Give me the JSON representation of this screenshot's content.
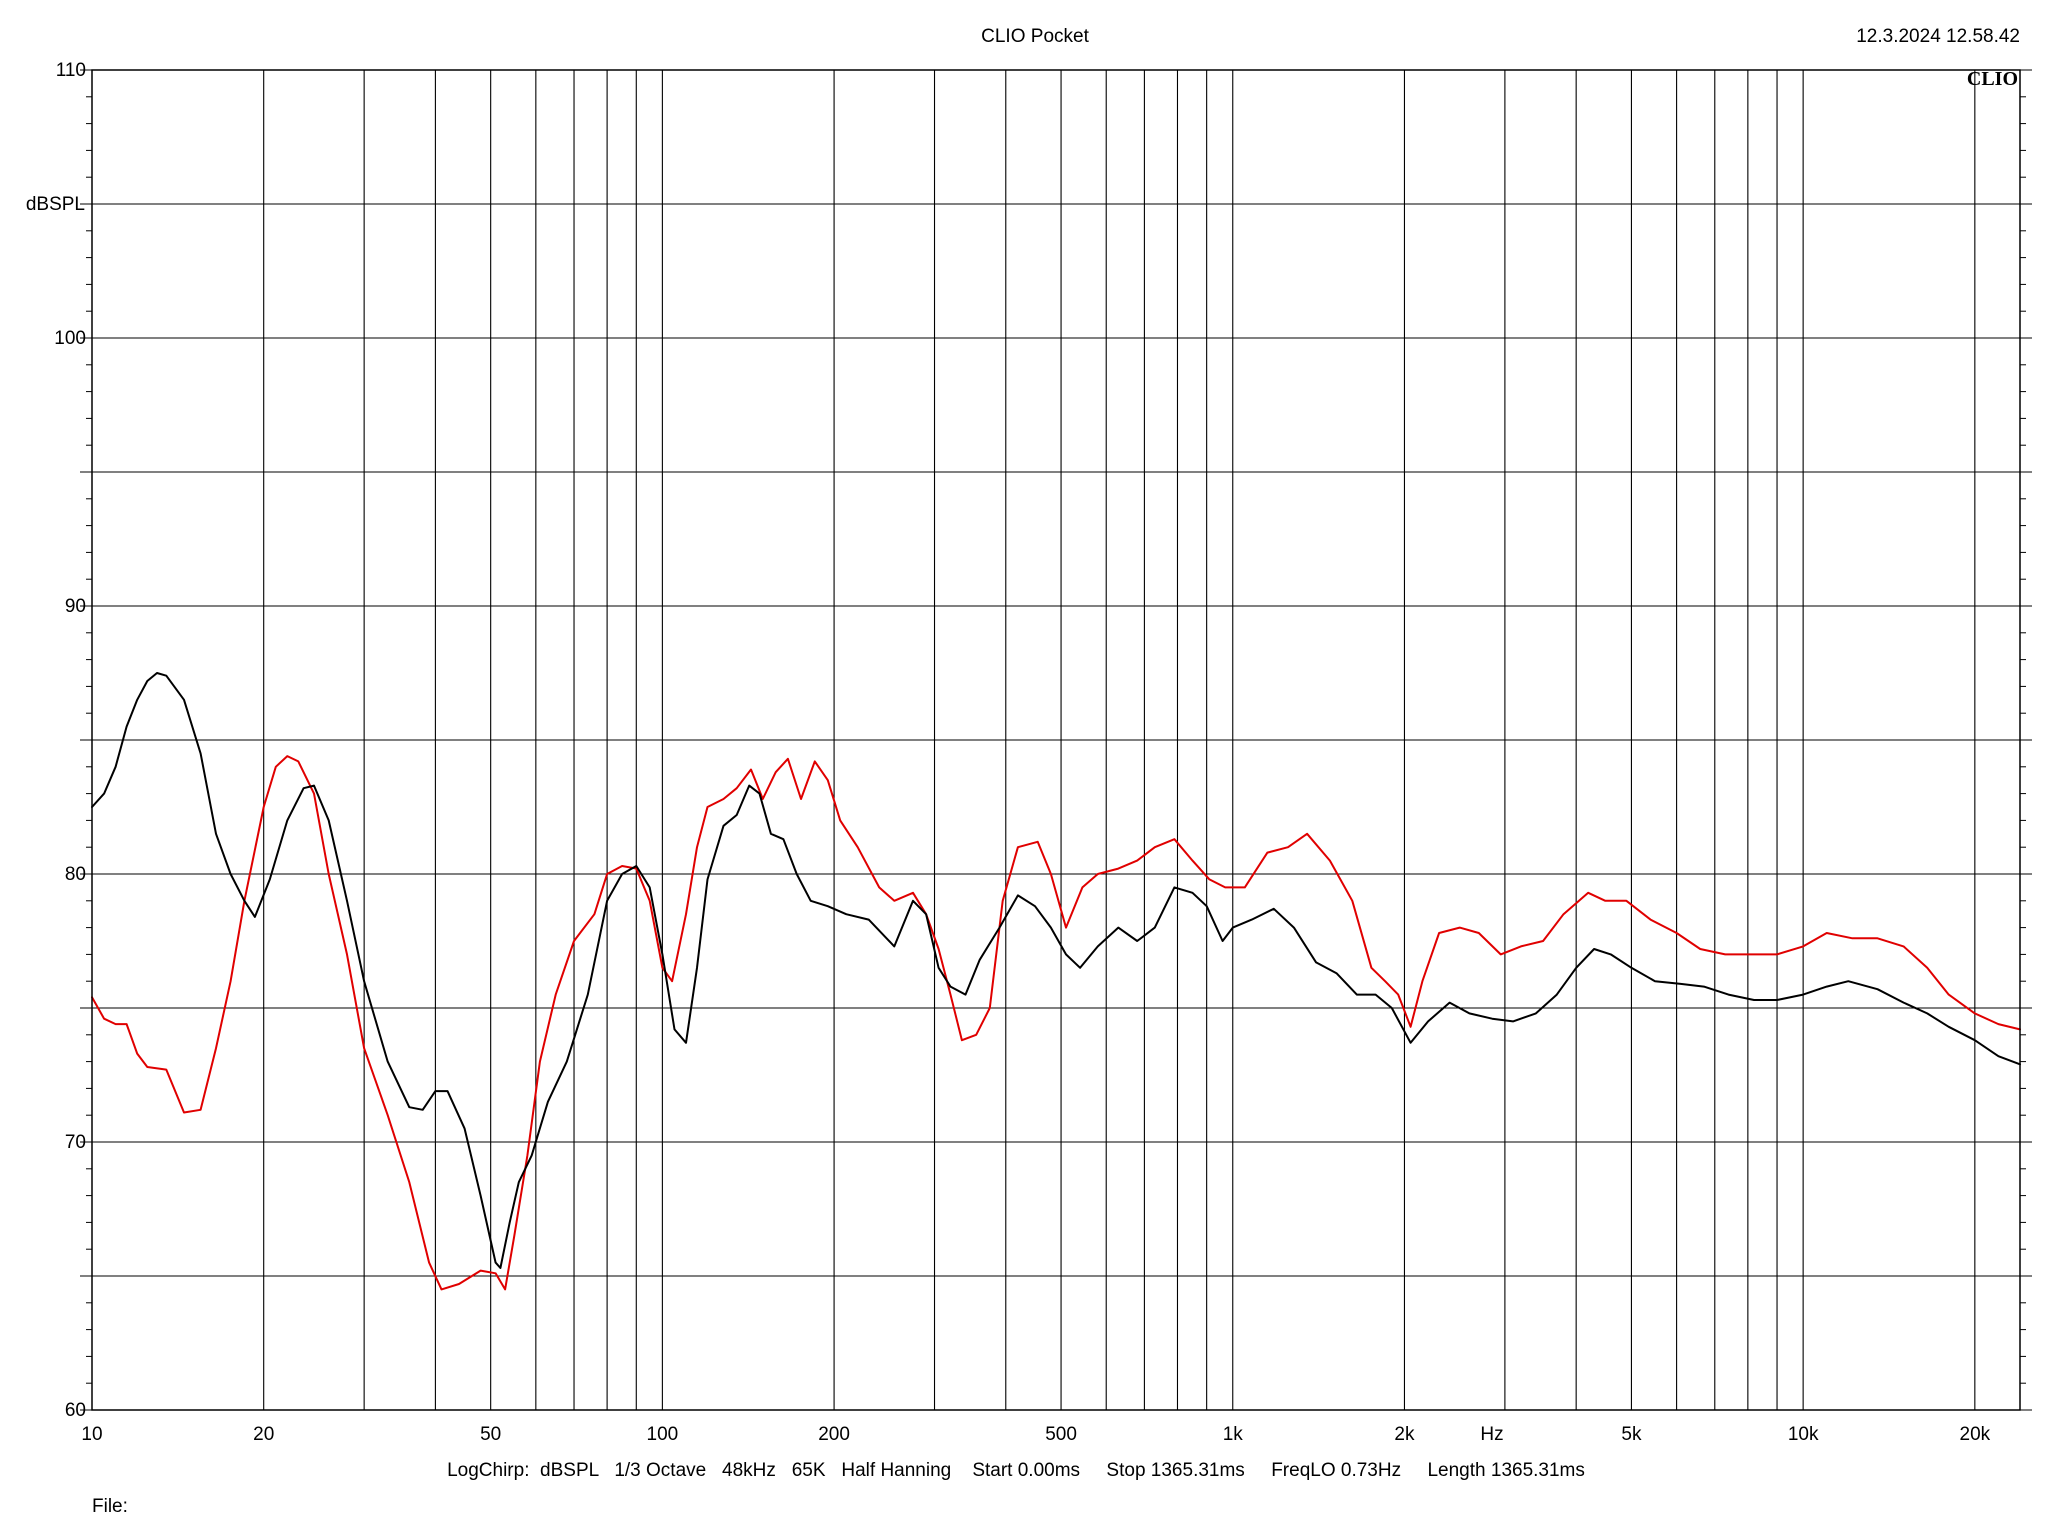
{
  "header": {
    "title": "CLIO Pocket",
    "datetime": "12.3.2024 12.58.42",
    "brand": "CLIO"
  },
  "footer": {
    "settings": "LogChirp:  dBSPL   1/3 Octave   48kHz   65K   Half Hanning    Start 0.00ms     Stop 1365.31ms     FreqLO 0.73Hz     Length 1365.31ms",
    "file_label": "File:"
  },
  "chart_data": {
    "type": "line",
    "xscale": "log",
    "xlim": [
      10,
      24000
    ],
    "ylim": [
      60,
      110
    ],
    "grid": true,
    "ylabel": "dBSPL",
    "xlabel": "Hz",
    "x_tick_labels": [
      {
        "value": 10,
        "label": "10"
      },
      {
        "value": 20,
        "label": "20"
      },
      {
        "value": 50,
        "label": "50"
      },
      {
        "value": 100,
        "label": "100"
      },
      {
        "value": 200,
        "label": "200"
      },
      {
        "value": 500,
        "label": "500"
      },
      {
        "value": 1000,
        "label": "1k"
      },
      {
        "value": 2000,
        "label": "2k"
      },
      {
        "value": 5000,
        "label": "5k"
      },
      {
        "value": 10000,
        "label": "10k"
      },
      {
        "value": 20000,
        "label": "20k"
      }
    ],
    "y_tick_labels": [
      {
        "value": 60,
        "label": "60"
      },
      {
        "value": 70,
        "label": "70"
      },
      {
        "value": 80,
        "label": "80"
      },
      {
        "value": 90,
        "label": "90"
      },
      {
        "value": 100,
        "label": "100"
      },
      {
        "value": 110,
        "label": "110"
      }
    ],
    "series": [
      {
        "color": "#e00000",
        "points": [
          [
            10,
            75.4
          ],
          [
            10.5,
            74.6
          ],
          [
            11,
            74.4
          ],
          [
            11.5,
            74.4
          ],
          [
            12,
            73.3
          ],
          [
            12.5,
            72.8
          ],
          [
            13.5,
            72.7
          ],
          [
            14.5,
            71.1
          ],
          [
            15.5,
            71.2
          ],
          [
            16.5,
            73.5
          ],
          [
            17.5,
            76.0
          ],
          [
            18.5,
            79.0
          ],
          [
            20,
            82.5
          ],
          [
            21,
            84.0
          ],
          [
            22,
            84.4
          ],
          [
            23,
            84.2
          ],
          [
            24.5,
            83.0
          ],
          [
            26,
            80.0
          ],
          [
            28,
            77.0
          ],
          [
            30,
            73.5
          ],
          [
            33,
            71.0
          ],
          [
            36,
            68.5
          ],
          [
            39,
            65.5
          ],
          [
            41,
            64.5
          ],
          [
            44,
            64.7
          ],
          [
            48,
            65.2
          ],
          [
            51,
            65.1
          ],
          [
            53,
            64.5
          ],
          [
            55,
            66.5
          ],
          [
            58,
            69.5
          ],
          [
            61,
            73.0
          ],
          [
            65,
            75.5
          ],
          [
            70,
            77.5
          ],
          [
            76,
            78.5
          ],
          [
            80,
            80.0
          ],
          [
            85,
            80.3
          ],
          [
            90,
            80.2
          ],
          [
            95,
            79.0
          ],
          [
            100,
            76.5
          ],
          [
            104,
            76.0
          ],
          [
            110,
            78.5
          ],
          [
            115,
            81.0
          ],
          [
            120,
            82.5
          ],
          [
            128,
            82.8
          ],
          [
            135,
            83.2
          ],
          [
            143,
            83.9
          ],
          [
            150,
            82.8
          ],
          [
            158,
            83.8
          ],
          [
            166,
            84.3
          ],
          [
            175,
            82.8
          ],
          [
            185,
            84.2
          ],
          [
            195,
            83.5
          ],
          [
            205,
            82.0
          ],
          [
            220,
            81.0
          ],
          [
            240,
            79.5
          ],
          [
            255,
            79.0
          ],
          [
            275,
            79.3
          ],
          [
            290,
            78.5
          ],
          [
            305,
            77.2
          ],
          [
            320,
            75.5
          ],
          [
            335,
            73.8
          ],
          [
            355,
            74.0
          ],
          [
            375,
            75.0
          ],
          [
            395,
            79.0
          ],
          [
            420,
            81.0
          ],
          [
            455,
            81.2
          ],
          [
            480,
            80.0
          ],
          [
            510,
            78.0
          ],
          [
            545,
            79.5
          ],
          [
            580,
            80.0
          ],
          [
            630,
            80.2
          ],
          [
            680,
            80.5
          ],
          [
            730,
            81.0
          ],
          [
            790,
            81.3
          ],
          [
            850,
            80.5
          ],
          [
            910,
            79.8
          ],
          [
            970,
            79.5
          ],
          [
            1050,
            79.5
          ],
          [
            1150,
            80.8
          ],
          [
            1250,
            81.0
          ],
          [
            1350,
            81.5
          ],
          [
            1480,
            80.5
          ],
          [
            1620,
            79.0
          ],
          [
            1750,
            76.5
          ],
          [
            1850,
            76.0
          ],
          [
            1950,
            75.5
          ],
          [
            2050,
            74.3
          ],
          [
            2150,
            76.0
          ],
          [
            2300,
            77.8
          ],
          [
            2500,
            78.0
          ],
          [
            2700,
            77.8
          ],
          [
            2950,
            77.0
          ],
          [
            3200,
            77.3
          ],
          [
            3500,
            77.5
          ],
          [
            3800,
            78.5
          ],
          [
            4200,
            79.3
          ],
          [
            4500,
            79.0
          ],
          [
            4900,
            79.0
          ],
          [
            5400,
            78.3
          ],
          [
            6000,
            77.8
          ],
          [
            6600,
            77.2
          ],
          [
            7300,
            77.0
          ],
          [
            8100,
            77.0
          ],
          [
            9000,
            77.0
          ],
          [
            10000,
            77.3
          ],
          [
            11000,
            77.8
          ],
          [
            12200,
            77.6
          ],
          [
            13500,
            77.6
          ],
          [
            15000,
            77.3
          ],
          [
            16500,
            76.5
          ],
          [
            18000,
            75.5
          ],
          [
            20000,
            74.8
          ],
          [
            22000,
            74.4
          ],
          [
            24000,
            74.2
          ]
        ]
      },
      {
        "color": "#000000",
        "points": [
          [
            10,
            82.5
          ],
          [
            10.5,
            83.0
          ],
          [
            11,
            84.0
          ],
          [
            11.5,
            85.5
          ],
          [
            12,
            86.5
          ],
          [
            12.5,
            87.2
          ],
          [
            13,
            87.5
          ],
          [
            13.5,
            87.4
          ],
          [
            14.5,
            86.5
          ],
          [
            15.5,
            84.5
          ],
          [
            16.5,
            81.5
          ],
          [
            17.5,
            80.0
          ],
          [
            18.5,
            79.0
          ],
          [
            19.3,
            78.4
          ],
          [
            20.5,
            79.8
          ],
          [
            22,
            82.0
          ],
          [
            23.5,
            83.2
          ],
          [
            24.5,
            83.3
          ],
          [
            26,
            82.0
          ],
          [
            28,
            79.0
          ],
          [
            30,
            76.0
          ],
          [
            33,
            73.0
          ],
          [
            36,
            71.3
          ],
          [
            38,
            71.2
          ],
          [
            40,
            71.9
          ],
          [
            42,
            71.9
          ],
          [
            45,
            70.5
          ],
          [
            48,
            68.0
          ],
          [
            51,
            65.5
          ],
          [
            52,
            65.3
          ],
          [
            54,
            67.0
          ],
          [
            56,
            68.5
          ],
          [
            59,
            69.5
          ],
          [
            63,
            71.5
          ],
          [
            68,
            73.0
          ],
          [
            74,
            75.5
          ],
          [
            80,
            79.0
          ],
          [
            85,
            80.0
          ],
          [
            90,
            80.3
          ],
          [
            95,
            79.5
          ],
          [
            100,
            77.0
          ],
          [
            105,
            74.2
          ],
          [
            110,
            73.7
          ],
          [
            115,
            76.5
          ],
          [
            120,
            79.8
          ],
          [
            128,
            81.8
          ],
          [
            135,
            82.2
          ],
          [
            142,
            83.3
          ],
          [
            148,
            83.0
          ],
          [
            155,
            81.5
          ],
          [
            163,
            81.3
          ],
          [
            172,
            80.0
          ],
          [
            182,
            79.0
          ],
          [
            195,
            78.8
          ],
          [
            210,
            78.5
          ],
          [
            230,
            78.3
          ],
          [
            255,
            77.3
          ],
          [
            275,
            79.0
          ],
          [
            290,
            78.5
          ],
          [
            305,
            76.5
          ],
          [
            320,
            75.8
          ],
          [
            340,
            75.5
          ],
          [
            360,
            76.8
          ],
          [
            390,
            78.0
          ],
          [
            420,
            79.2
          ],
          [
            450,
            78.8
          ],
          [
            480,
            78.0
          ],
          [
            510,
            77.0
          ],
          [
            540,
            76.5
          ],
          [
            580,
            77.3
          ],
          [
            630,
            78.0
          ],
          [
            680,
            77.5
          ],
          [
            730,
            78.0
          ],
          [
            790,
            79.5
          ],
          [
            850,
            79.3
          ],
          [
            900,
            78.8
          ],
          [
            960,
            77.5
          ],
          [
            1000,
            78.0
          ],
          [
            1080,
            78.3
          ],
          [
            1180,
            78.7
          ],
          [
            1280,
            78.0
          ],
          [
            1400,
            76.7
          ],
          [
            1520,
            76.3
          ],
          [
            1650,
            75.5
          ],
          [
            1780,
            75.5
          ],
          [
            1900,
            75.0
          ],
          [
            2050,
            73.7
          ],
          [
            2200,
            74.5
          ],
          [
            2400,
            75.2
          ],
          [
            2600,
            74.8
          ],
          [
            2850,
            74.6
          ],
          [
            3100,
            74.5
          ],
          [
            3400,
            74.8
          ],
          [
            3700,
            75.5
          ],
          [
            4000,
            76.5
          ],
          [
            4300,
            77.2
          ],
          [
            4600,
            77.0
          ],
          [
            5000,
            76.5
          ],
          [
            5500,
            76.0
          ],
          [
            6100,
            75.9
          ],
          [
            6700,
            75.8
          ],
          [
            7400,
            75.5
          ],
          [
            8200,
            75.3
          ],
          [
            9000,
            75.3
          ],
          [
            10000,
            75.5
          ],
          [
            11000,
            75.8
          ],
          [
            12000,
            76.0
          ],
          [
            13500,
            75.7
          ],
          [
            15000,
            75.2
          ],
          [
            16500,
            74.8
          ],
          [
            18000,
            74.3
          ],
          [
            20000,
            73.8
          ],
          [
            22000,
            73.2
          ],
          [
            24000,
            72.9
          ]
        ]
      }
    ]
  }
}
